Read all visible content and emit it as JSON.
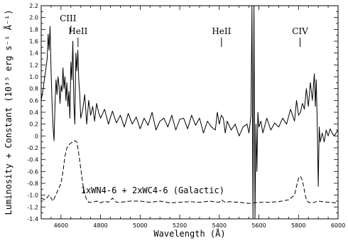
{
  "chart_data": {
    "type": "line",
    "xlabel": "Wavelength  (Å)",
    "ylabel": "Luminosity + Constant (10³⁵ erg s⁻¹ Å⁻¹)",
    "xlim": [
      4500,
      6000
    ],
    "ylim": [
      -1.4,
      2.2
    ],
    "x_ticks": [
      4600,
      4800,
      5000,
      5200,
      5400,
      5600,
      5800,
      6000
    ],
    "y_ticks": [
      -1.4,
      -1.2,
      -1.0,
      -0.8,
      -0.6,
      -0.4,
      -0.2,
      0,
      0.2,
      0.4,
      0.6,
      0.8,
      1.0,
      1.2,
      1.4,
      1.6,
      1.8,
      2.0,
      2.2
    ],
    "y_tick_labels": [
      "-1.4",
      "-1.2",
      "-1.0",
      "-0.8",
      "-0.6",
      "-0.4",
      "-0.2",
      "0",
      "0.2",
      "0.4",
      "0.6",
      "0.8",
      "1.0",
      "1.2",
      "1.4",
      "1.6",
      "1.8",
      "2.0",
      "2.2"
    ],
    "line_annotations": [
      {
        "text": "CIII",
        "x": 4650
      },
      {
        "text": "HeII",
        "x": 4686
      },
      {
        "text": "HeII",
        "x": 5411
      },
      {
        "text": "CIV",
        "x": 5808
      }
    ],
    "series": [
      {
        "style": "solid",
        "x": [
          4500,
          4510,
          4520,
          4530,
          4535,
          4540,
          4545,
          4550,
          4555,
          4560,
          4565,
          4570,
          4575,
          4580,
          4585,
          4590,
          4595,
          4600,
          4605,
          4610,
          4615,
          4620,
          4625,
          4630,
          4635,
          4640,
          4645,
          4650,
          4655,
          4660,
          4665,
          4670,
          4675,
          4680,
          4685,
          4690,
          4695,
          4700,
          4710,
          4720,
          4730,
          4740,
          4750,
          4760,
          4770,
          4780,
          4790,
          4800,
          4820,
          4840,
          4860,
          4880,
          4900,
          4920,
          4940,
          4960,
          4980,
          5000,
          5020,
          5040,
          5060,
          5080,
          5100,
          5120,
          5140,
          5160,
          5180,
          5200,
          5220,
          5240,
          5260,
          5280,
          5300,
          5320,
          5340,
          5360,
          5380,
          5390,
          5400,
          5410,
          5420,
          5430,
          5440,
          5460,
          5480,
          5500,
          5520,
          5540,
          5550,
          5560,
          5565,
          5570,
          5575,
          5580,
          5585,
          5590,
          5595,
          5600,
          5610,
          5620,
          5640,
          5660,
          5680,
          5700,
          5720,
          5740,
          5760,
          5780,
          5790,
          5800,
          5810,
          5820,
          5830,
          5840,
          5850,
          5860,
          5870,
          5880,
          5885,
          5890,
          5895,
          5900,
          5905,
          5910,
          5920,
          5930,
          5940,
          5950,
          5960,
          5970,
          5980,
          5990,
          6000
        ],
        "y": [
          0.6,
          0.8,
          1.05,
          1.3,
          1.72,
          1.45,
          1.85,
          1.1,
          0.55,
          0.15,
          -0.08,
          0.55,
          0.95,
          0.7,
          1.0,
          0.85,
          0.55,
          0.85,
          0.75,
          1.15,
          0.8,
          1.0,
          0.6,
          0.9,
          0.5,
          0.75,
          0.3,
          1.25,
          0.95,
          1.6,
          0.55,
          0.2,
          1.4,
          1.1,
          1.45,
          0.95,
          0.7,
          0.3,
          0.45,
          0.7,
          0.2,
          0.6,
          0.35,
          0.5,
          0.25,
          0.55,
          0.4,
          0.3,
          0.45,
          0.2,
          0.42,
          0.22,
          0.35,
          0.15,
          0.38,
          0.2,
          0.32,
          0.12,
          0.3,
          0.18,
          0.4,
          0.1,
          0.25,
          0.3,
          0.15,
          0.35,
          0.1,
          0.28,
          0.3,
          0.12,
          0.35,
          0.18,
          0.3,
          0.05,
          0.25,
          0.15,
          0.1,
          0.4,
          0.2,
          0.35,
          0.3,
          0.05,
          0.25,
          0.1,
          0.2,
          0.0,
          0.15,
          0.2,
          0.05,
          0.35,
          2.2,
          -1.4,
          2.2,
          -1.4,
          0.2,
          -0.6,
          0.4,
          0.15,
          0.25,
          0.05,
          0.3,
          0.1,
          0.22,
          0.15,
          0.3,
          0.2,
          0.45,
          0.25,
          0.6,
          0.35,
          0.4,
          0.55,
          0.45,
          0.8,
          0.5,
          0.9,
          0.6,
          1.05,
          0.5,
          0.95,
          0.2,
          -0.85,
          0.15,
          -0.1,
          0.05,
          -0.1,
          0.1,
          0.0,
          0.12,
          0.05,
          0.0,
          0.05,
          0.1
        ]
      },
      {
        "style": "dashed",
        "x": [
          4500,
          4520,
          4540,
          4560,
          4580,
          4600,
          4610,
          4620,
          4630,
          4640,
          4650,
          4660,
          4670,
          4680,
          4690,
          4700,
          4710,
          4720,
          4730,
          4740,
          4760,
          4780,
          4800,
          4820,
          4840,
          4860,
          4880,
          4900,
          4950,
          5000,
          5050,
          5100,
          5150,
          5200,
          5250,
          5300,
          5350,
          5400,
          5410,
          5420,
          5430,
          5450,
          5500,
          5550,
          5600,
          5650,
          5700,
          5750,
          5780,
          5790,
          5800,
          5810,
          5820,
          5830,
          5840,
          5850,
          5870,
          5900,
          5950,
          6000
        ],
        "y": [
          -1.05,
          -1.08,
          -1.0,
          -1.1,
          -0.95,
          -0.8,
          -0.6,
          -0.35,
          -0.2,
          -0.15,
          -0.12,
          -0.1,
          -0.08,
          -0.1,
          -0.3,
          -0.55,
          -0.8,
          -0.98,
          -1.08,
          -1.12,
          -1.12,
          -1.1,
          -1.13,
          -1.1,
          -1.12,
          -1.05,
          -1.12,
          -1.12,
          -1.1,
          -1.1,
          -1.12,
          -1.1,
          -1.13,
          -1.12,
          -1.11,
          -1.12,
          -1.1,
          -1.12,
          -1.08,
          -1.1,
          -1.12,
          -1.11,
          -1.12,
          -1.14,
          -1.12,
          -1.12,
          -1.11,
          -1.08,
          -1.0,
          -0.85,
          -0.72,
          -0.68,
          -0.75,
          -0.92,
          -1.08,
          -1.12,
          -1.13,
          -1.1,
          -1.12,
          -1.13
        ]
      }
    ],
    "legend": "1xWN4-6 + 2xWC4-6 (Galactic)",
    "grid": false
  }
}
